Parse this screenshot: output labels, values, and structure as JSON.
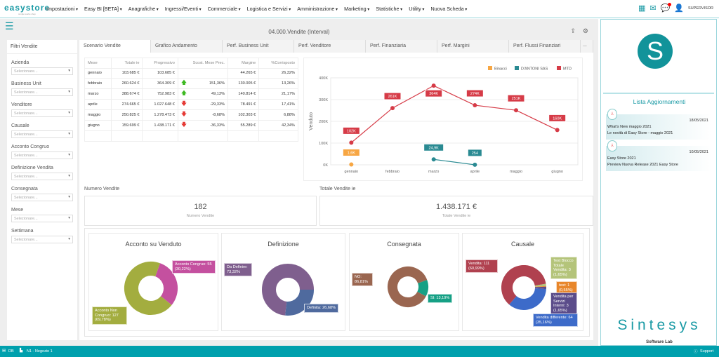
{
  "topnav": {
    "logo": "easystore",
    "logo_tagline": "simple works shop",
    "menu": [
      "Impostazioni",
      "Easy BI [BETA]",
      "Anagrafiche",
      "Ingressi/Eventi",
      "Commerciale",
      "Logistica e Servizi",
      "Amministrazione",
      "Marketing",
      "Statistiche",
      "Utility",
      "Nuova Scheda"
    ],
    "user": "SUPERVISOR"
  },
  "page": {
    "title": "04.000.Vendite (Interval)"
  },
  "filters": {
    "title": "Filtri Vendite",
    "placeholder": "Selezionare...",
    "items": [
      "Azienda",
      "Business Unit",
      "Venditore",
      "Causale",
      "Acconto Congruo",
      "Definizione Vendita",
      "Consegnata",
      "Mese",
      "Settimana"
    ]
  },
  "tabs": [
    "Scenario Vendite",
    "Grafico Andamento",
    "Perf. Business Unit",
    "Perf. Venditore",
    "Perf. Finanziaria",
    "Perf. Margini",
    "Perf. Flussi Finanziari"
  ],
  "tabs_more": "...",
  "table": {
    "headers": [
      "Mese",
      "Totale ie",
      "Progressivo",
      "Scost. Mese Prec.",
      "Margine",
      "%Corrisposto"
    ],
    "rows": [
      [
        "gennaio",
        "103.685 €",
        "103.685 €",
        "",
        "",
        "44.265 €",
        "26,32%"
      ],
      [
        "febbraio",
        "260.624 €",
        "364.309 €",
        "up",
        "151,36%",
        "130.005 €",
        "13,26%"
      ],
      [
        "marzo",
        "388.674 €",
        "752.983 €",
        "up",
        "49,13%",
        "140.814 €",
        "21,17%"
      ],
      [
        "aprile",
        "274.665 €",
        "1.027.648 €",
        "down",
        "-29,33%",
        "78.491 €",
        "17,41%"
      ],
      [
        "maggio",
        "250.825 €",
        "1.278.473 €",
        "down",
        "-8,68%",
        "102.303 €",
        "6,88%"
      ],
      [
        "giugno",
        "159.699 €",
        "1.438.171 €",
        "down",
        "-36,33%",
        "55.289 €",
        "42,34%"
      ]
    ]
  },
  "chart_data": [
    {
      "type": "line",
      "ylabel": "Venduto",
      "xlabel": "",
      "categories": [
        "gennaio",
        "febbraio",
        "marzo",
        "aprile",
        "maggio",
        "giugno"
      ],
      "ylim": [
        0,
        400000
      ],
      "yticks": [
        "0K",
        "100K",
        "200K",
        "300K",
        "400K"
      ],
      "grid": true,
      "legend": "top-right",
      "series": [
        {
          "name": "Binacci",
          "color": "#f7a643",
          "values": [
            1600,
            null,
            null,
            null,
            null,
            null
          ],
          "labels": [
            "1,6K",
            "",
            "",
            "",
            "",
            ""
          ]
        },
        {
          "name": "D'ANTONI SAS",
          "color": "#2a8a92",
          "values": [
            null,
            null,
            24900,
            254,
            null,
            null
          ],
          "labels": [
            "",
            "",
            "24,9K",
            "254",
            "",
            ""
          ]
        },
        {
          "name": "MTD",
          "color": "#d63b47",
          "values": [
            102000,
            261000,
            364000,
            274000,
            251000,
            160000
          ],
          "labels": [
            "102K",
            "261K",
            "364K",
            "274K",
            "251K",
            "160K"
          ]
        }
      ]
    },
    {
      "type": "pie",
      "title": "Acconto su Venduto",
      "slices": [
        {
          "label": "Acconto Congruo: 55 (30,22%)",
          "value": 30.22,
          "color": "#c4509f"
        },
        {
          "label": "Acconto Non Congruo: 127 (69,78%)",
          "value": 69.78,
          "color": "#a3ad3f"
        }
      ]
    },
    {
      "type": "pie",
      "title": "Definizione",
      "slices": [
        {
          "label": "Definita: 26,68%",
          "value": 26.68,
          "color": "#4f6a9e"
        },
        {
          "label": "Da Definire: 73,32%",
          "value": 73.32,
          "color": "#7f5f8e"
        }
      ]
    },
    {
      "type": "pie",
      "title": "Consegnata",
      "slices": [
        {
          "label": "SI: 13,19%",
          "value": 13.19,
          "color": "#16a085"
        },
        {
          "label": "NO: 86,81%",
          "value": 86.81,
          "color": "#9a6650"
        }
      ]
    },
    {
      "type": "pie",
      "title": "Causale",
      "slices": [
        {
          "label": "Test Blocco Totale Vendita: 3 (1,65%)",
          "value": 1.65,
          "color": "#b4c47a"
        },
        {
          "label": "test: 1 (0,55%)",
          "value": 0.55,
          "color": "#e8862a"
        },
        {
          "label": "Vendita per Servizi Interni: 3 (1,65%)",
          "value": 1.65,
          "color": "#5b4c8a"
        },
        {
          "label": "Vendita differente: 64 (35,16%)",
          "value": 35.16,
          "color": "#3d6bc9"
        },
        {
          "label": "Vendita: 111 (60,99%)",
          "value": 60.99,
          "color": "#b0414f"
        }
      ]
    }
  ],
  "kpis": [
    {
      "label": "Numero Vendite",
      "value": "182",
      "sub": "Numero Vendite"
    },
    {
      "label": "Totale Vendite ie",
      "value": "1.438.171 €",
      "sub": "Totale Vendite ie"
    }
  ],
  "right": {
    "logo_letter": "S",
    "list_title": "Lista Aggiornamenti",
    "updates": [
      {
        "date": "18/05/2021",
        "title": "What's New maggio 2021",
        "desc": "Le novità di Easy Store - maggio 2021"
      },
      {
        "date": "10/05/2021",
        "title": "Easy Store 2021",
        "desc": "Preview Nuova Release 2021 Easy Store"
      }
    ],
    "brand": "Sintesys",
    "brand_sub": "Software Lab"
  },
  "bottom": {
    "db": "DB",
    "store": "N1 - Negozio 1",
    "support": "Support"
  }
}
